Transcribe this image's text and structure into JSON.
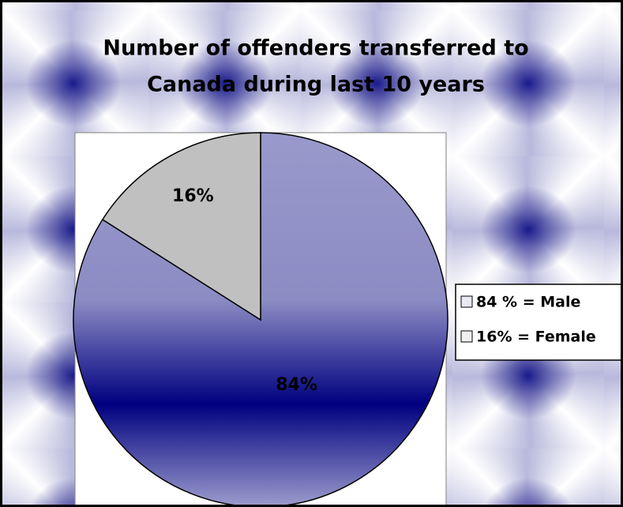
{
  "chart_data": {
    "type": "pie",
    "title": [
      "Number of offenders transferred to",
      "Canada during last 10 years"
    ],
    "categories": [
      "84 % = Male",
      "16% = Female"
    ],
    "values": [
      84,
      16
    ],
    "value_labels": [
      "84%",
      "16%"
    ],
    "colors": [
      "#9999cc",
      "#c0c0c0"
    ],
    "legend": "right"
  }
}
